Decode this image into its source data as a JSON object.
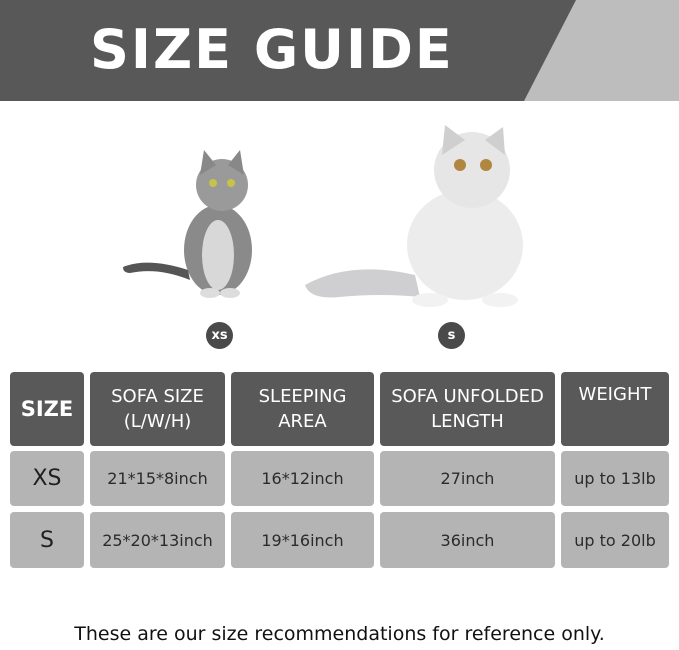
{
  "header": {
    "title": "SIZE GUIDE",
    "colors": {
      "dark": "#585858",
      "accent": "#bdbdbd"
    }
  },
  "cats": [
    {
      "label": "xs",
      "image": "tabby-cat-photo"
    },
    {
      "label": "s",
      "image": "persian-cat-photo"
    }
  ],
  "table": {
    "headers": [
      "SIZE",
      "SOFA SIZE\n(L/W/H)",
      "SLEEPING\nAREA",
      "SOFA UNFOLDED\nLENGTH",
      "WEIGHT"
    ],
    "rows": [
      [
        "XS",
        "21*15*8inch",
        "16*12inch",
        "27inch",
        "up to 13lb"
      ],
      [
        "S",
        "25*20*13inch",
        "19*16inch",
        "36inch",
        "up to 20lb"
      ]
    ]
  },
  "footer": "These are our size recommendations for reference only."
}
